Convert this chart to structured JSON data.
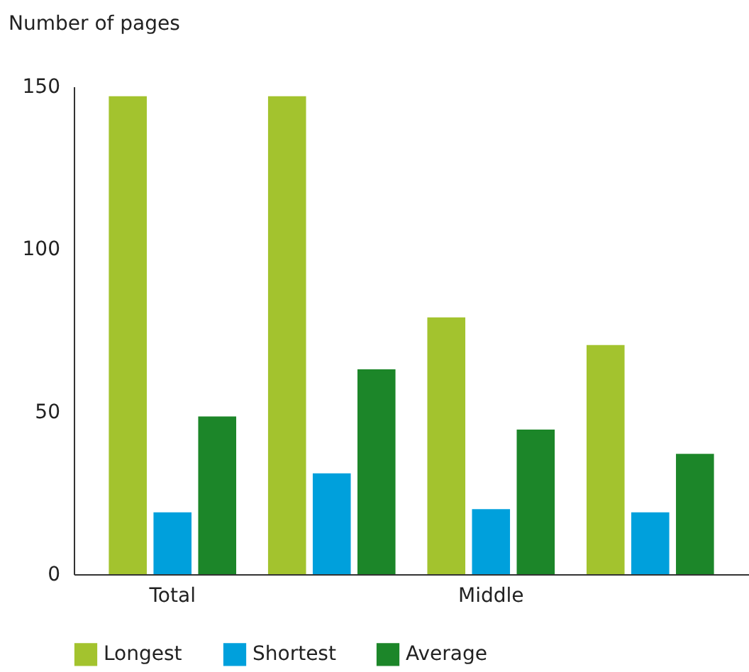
{
  "chart_data": {
    "type": "bar",
    "title": "Number of pages",
    "categories": [
      "Total",
      null,
      "Middle",
      null
    ],
    "series": [
      {
        "name": "Longest",
        "color": "#a3c32e",
        "values": [
          147,
          147,
          79,
          70.5
        ]
      },
      {
        "name": "Shortest",
        "color": "#00a0dc",
        "values": [
          19,
          31,
          20,
          19
        ]
      },
      {
        "name": "Average",
        "color": "#1c8629",
        "values": [
          48.5,
          63,
          44.5,
          37
        ]
      }
    ],
    "ylim": [
      0,
      150
    ],
    "yticks": [
      0,
      50,
      100,
      150
    ],
    "grid": false,
    "legend": "bottom"
  }
}
